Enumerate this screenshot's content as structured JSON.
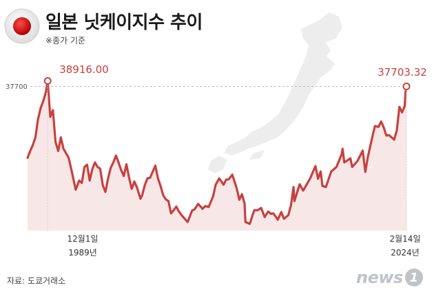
{
  "header": {
    "title": "일본 닛케이지수 추이",
    "subtitle": "※종가 기준",
    "flag_icon": "japan-flag-icon"
  },
  "footer": {
    "source": "자료: 도쿄거래소",
    "logo_text": "news",
    "logo_badge": "1"
  },
  "colors": {
    "line": "#c8403f",
    "area": "#f6e4e3",
    "map": "#ededed",
    "reference_line": "#bbbbbb"
  },
  "chart_data": {
    "type": "line",
    "title": "일본 닛케이지수 추이",
    "subtitle": "※종가 기준",
    "reference_line": {
      "value": 37700,
      "label": "37700"
    },
    "x_start": "1988",
    "x_end": "2024-02",
    "ylim": [
      6000,
      40000
    ],
    "grid": false,
    "legend": "none",
    "annotations": [
      {
        "x": "1989-12",
        "y": 38916.0,
        "label": "38916.00",
        "date_line1": "12월1일",
        "date_line2": "1989년"
      },
      {
        "x": "2024-02",
        "y": 37703.32,
        "label": "37703.32",
        "date_line1": "2월14일",
        "date_line2": "2024년"
      }
    ],
    "series": [
      {
        "x": [
          "1988-01",
          "1988-04",
          "1988-07",
          "1988-10",
          "1989-01",
          "1989-04",
          "1989-07",
          "1989-10",
          "1989-12",
          "1990-03",
          "1990-06",
          "1990-09",
          "1990-12",
          "1991-03",
          "1991-06",
          "1991-09",
          "1991-12",
          "1992-03",
          "1992-08",
          "1992-12",
          "1993-03",
          "1993-06",
          "1993-09",
          "1993-12",
          "1994-03",
          "1994-06",
          "1994-09",
          "1994-12",
          "1995-03",
          "1995-06",
          "1995-09",
          "1995-12",
          "1996-03",
          "1996-06",
          "1996-09",
          "1996-12",
          "1997-03",
          "1997-06",
          "1997-09",
          "1997-12",
          "1998-03",
          "1998-06",
          "1998-10",
          "1998-12",
          "1999-03",
          "1999-06",
          "1999-09",
          "2000-03",
          "2000-06",
          "2000-09",
          "2000-12",
          "2001-03",
          "2001-06",
          "2001-09",
          "2001-12",
          "2002-03",
          "2002-06",
          "2002-09",
          "2003-04",
          "2003-09",
          "2003-12",
          "2004-04",
          "2004-09",
          "2004-12",
          "2005-04",
          "2005-09",
          "2005-12",
          "2006-04",
          "2006-09",
          "2006-12",
          "2007-03",
          "2007-07",
          "2007-12",
          "2008-03",
          "2008-06",
          "2008-09",
          "2008-10",
          "2009-03",
          "2009-08",
          "2009-12",
          "2010-04",
          "2010-08",
          "2010-12",
          "2011-03",
          "2011-06",
          "2011-11",
          "2012-03",
          "2012-06",
          "2012-11",
          "2013-02",
          "2013-05",
          "2013-06",
          "2013-12",
          "2014-04",
          "2014-12",
          "2015-06",
          "2015-09",
          "2015-12",
          "2016-02",
          "2016-06",
          "2016-12",
          "2017-06",
          "2017-12",
          "2018-01",
          "2018-03",
          "2018-10",
          "2018-12",
          "2019-06",
          "2019-12",
          "2020-03",
          "2020-06",
          "2020-12",
          "2021-02",
          "2021-06",
          "2021-09",
          "2021-12",
          "2022-03",
          "2022-06",
          "2022-12",
          "2023-03",
          "2023-06",
          "2023-09",
          "2023-12",
          "2024-01",
          "2024-02"
        ],
        "values": [
          22000,
          23500,
          24800,
          26500,
          30500,
          33000,
          34500,
          36500,
          38916,
          31000,
          32500,
          25500,
          23500,
          26500,
          24000,
          23000,
          22000,
          19500,
          15000,
          17000,
          16500,
          20000,
          20500,
          17000,
          19500,
          21000,
          20000,
          19600,
          16000,
          14500,
          17500,
          19800,
          21000,
          22500,
          21000,
          19300,
          18000,
          20600,
          17700,
          15200,
          16800,
          15500,
          13000,
          13800,
          16000,
          17500,
          17600,
          20300,
          17500,
          15800,
          13800,
          12900,
          12500,
          9800,
          10500,
          11300,
          10200,
          9400,
          7900,
          10400,
          10700,
          11900,
          10800,
          11400,
          11200,
          13500,
          16100,
          17500,
          16100,
          17200,
          17300,
          18300,
          15300,
          12800,
          14000,
          12000,
          7900,
          7500,
          10500,
          10500,
          11000,
          9000,
          10200,
          9700,
          9800,
          8400,
          10100,
          8600,
          9400,
          11500,
          15600,
          12500,
          16200,
          14800,
          17500,
          20200,
          17400,
          19000,
          15800,
          15600,
          19000,
          20000,
          22800,
          24000,
          21000,
          21900,
          20000,
          21300,
          23600,
          18900,
          22300,
          27400,
          29000,
          28800,
          30000,
          28700,
          26900,
          27000,
          26000,
          28000,
          33200,
          32000,
          33400,
          36500,
          37703.32
        ]
      }
    ]
  }
}
